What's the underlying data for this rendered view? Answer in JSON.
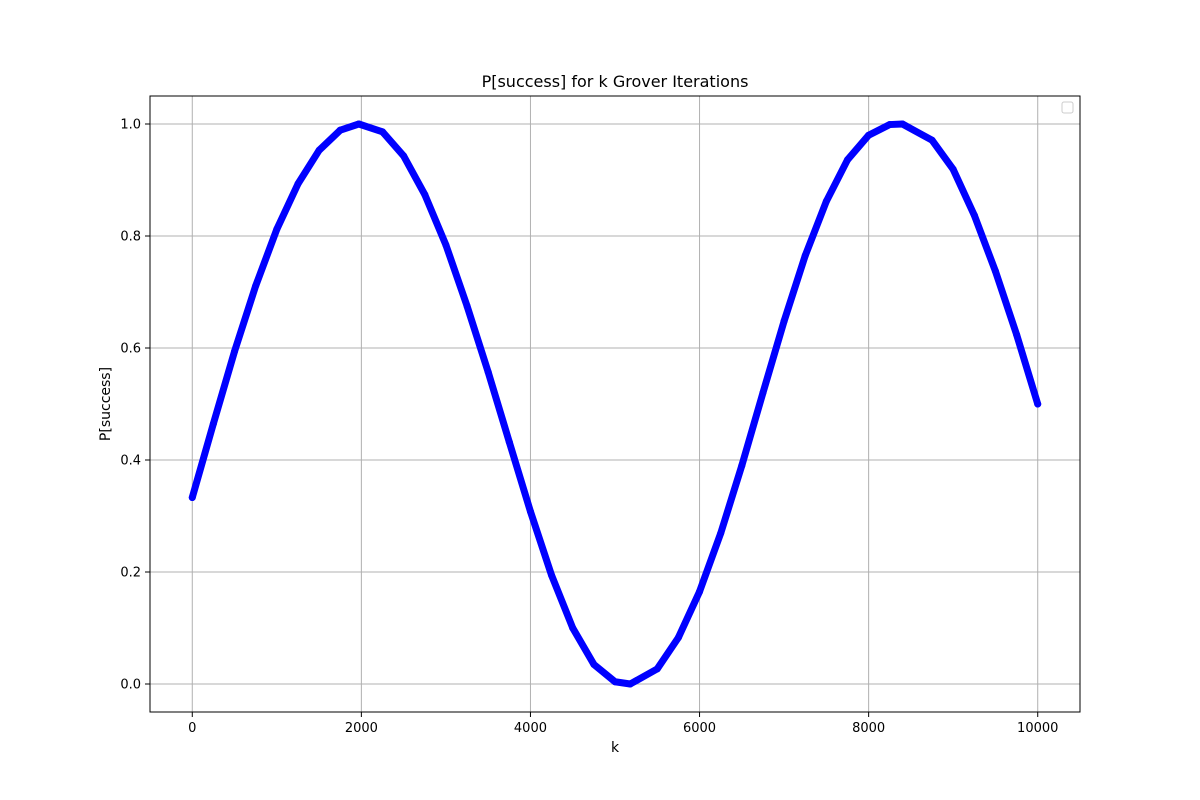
{
  "chart_data": {
    "type": "scatter",
    "title": "P[success] for k Grover Iterations",
    "xlabel": "k",
    "ylabel": "P[success]",
    "xlim": [
      -500,
      10500
    ],
    "ylim": [
      -0.05,
      1.05
    ],
    "x_ticks": [
      0,
      2000,
      4000,
      6000,
      8000,
      10000
    ],
    "y_ticks": [
      0.0,
      0.2,
      0.4,
      0.6,
      0.8,
      1.0
    ],
    "x_tick_labels": [
      "0",
      "2000",
      "4000",
      "6000",
      "8000",
      "10000"
    ],
    "y_tick_labels": [
      "0.0",
      "0.2",
      "0.4",
      "0.6",
      "0.8",
      "1.0"
    ],
    "grid": true,
    "legend": "top-right (empty)",
    "series": [
      {
        "color": "#0000ff",
        "x": [
          0,
          250,
          500,
          750,
          1000,
          1250,
          1500,
          1750,
          1970,
          2250,
          2500,
          2750,
          3000,
          3250,
          3500,
          3750,
          4000,
          4250,
          4500,
          4750,
          5000,
          5180,
          5500,
          5750,
          6000,
          6250,
          6500,
          6750,
          7000,
          7250,
          7500,
          7750,
          8000,
          8250,
          8400,
          8750,
          9000,
          9250,
          9500,
          9750,
          10000
        ],
        "y": [
          0.333,
          0.465,
          0.594,
          0.711,
          0.812,
          0.893,
          0.953,
          0.989,
          1.0,
          0.986,
          0.943,
          0.874,
          0.784,
          0.675,
          0.557,
          0.432,
          0.308,
          0.194,
          0.1,
          0.035,
          0.004,
          0.0,
          0.027,
          0.083,
          0.165,
          0.269,
          0.39,
          0.52,
          0.648,
          0.765,
          0.862,
          0.936,
          0.98,
          0.999,
          1.0,
          0.971,
          0.919,
          0.837,
          0.737,
          0.624,
          0.5
        ]
      }
    ]
  }
}
